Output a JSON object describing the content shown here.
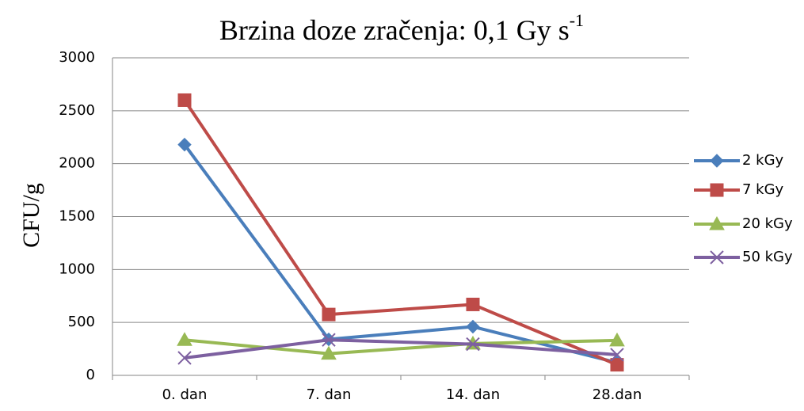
{
  "chart_data": {
    "type": "line",
    "title": "Brzina doze zračenja: 0,1 Gy s",
    "title_superscript": "-1",
    "y_label": "CFU/g",
    "categories": [
      "0. dan",
      "7. dan",
      "14. dan",
      "28.dan"
    ],
    "series": [
      {
        "name": "2 kGy",
        "color": "#4a7ebb",
        "marker": "diamond",
        "values": [
          2180,
          340,
          460,
          120
        ]
      },
      {
        "name": "7 kGy",
        "color": "#be4b48",
        "marker": "square",
        "values": [
          2600,
          575,
          670,
          100
        ]
      },
      {
        "name": "20 kGy",
        "color": "#98b954",
        "marker": "triangle",
        "values": [
          335,
          205,
          300,
          330
        ]
      },
      {
        "name": "50 kGy",
        "color": "#7d60a0",
        "marker": "x",
        "values": [
          165,
          335,
          295,
          195
        ]
      }
    ],
    "ylim": [
      0,
      3000
    ],
    "yticks": [
      0,
      500,
      1000,
      1500,
      2000,
      2500,
      3000
    ],
    "grid": true,
    "legend": "right"
  }
}
